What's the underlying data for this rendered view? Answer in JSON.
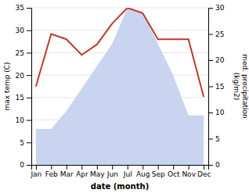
{
  "chart_data": {
    "type": "line",
    "categories": [
      "Jan",
      "Feb",
      "Mar",
      "Apr",
      "May",
      "Jun",
      "Jul",
      "Aug",
      "Sep",
      "Oct",
      "Nov",
      "Dec"
    ],
    "series": [
      {
        "type": "area",
        "color": "#c8d4f0",
        "values": [
          8,
          8,
          12,
          17,
          22,
          27,
          35,
          34,
          27,
          20,
          11,
          11
        ]
      },
      {
        "type": "line",
        "color": "#c0392b",
        "axis": "y2",
        "values": [
          15,
          25,
          24,
          21,
          23,
          27,
          30,
          29,
          24,
          24,
          24,
          13
        ]
      }
    ],
    "xlabel": "date (month)",
    "ylabel": "max temp (C)",
    "y2label": "med. precipitation\n(kg/m2)",
    "ylim": [
      0,
      35
    ],
    "yticks": [
      0,
      5,
      10,
      15,
      20,
      25,
      30,
      35
    ],
    "y2lim": [
      0,
      30
    ],
    "y2ticks": [
      0,
      5,
      10,
      15,
      20,
      25,
      30
    ],
    "grid": true
  }
}
